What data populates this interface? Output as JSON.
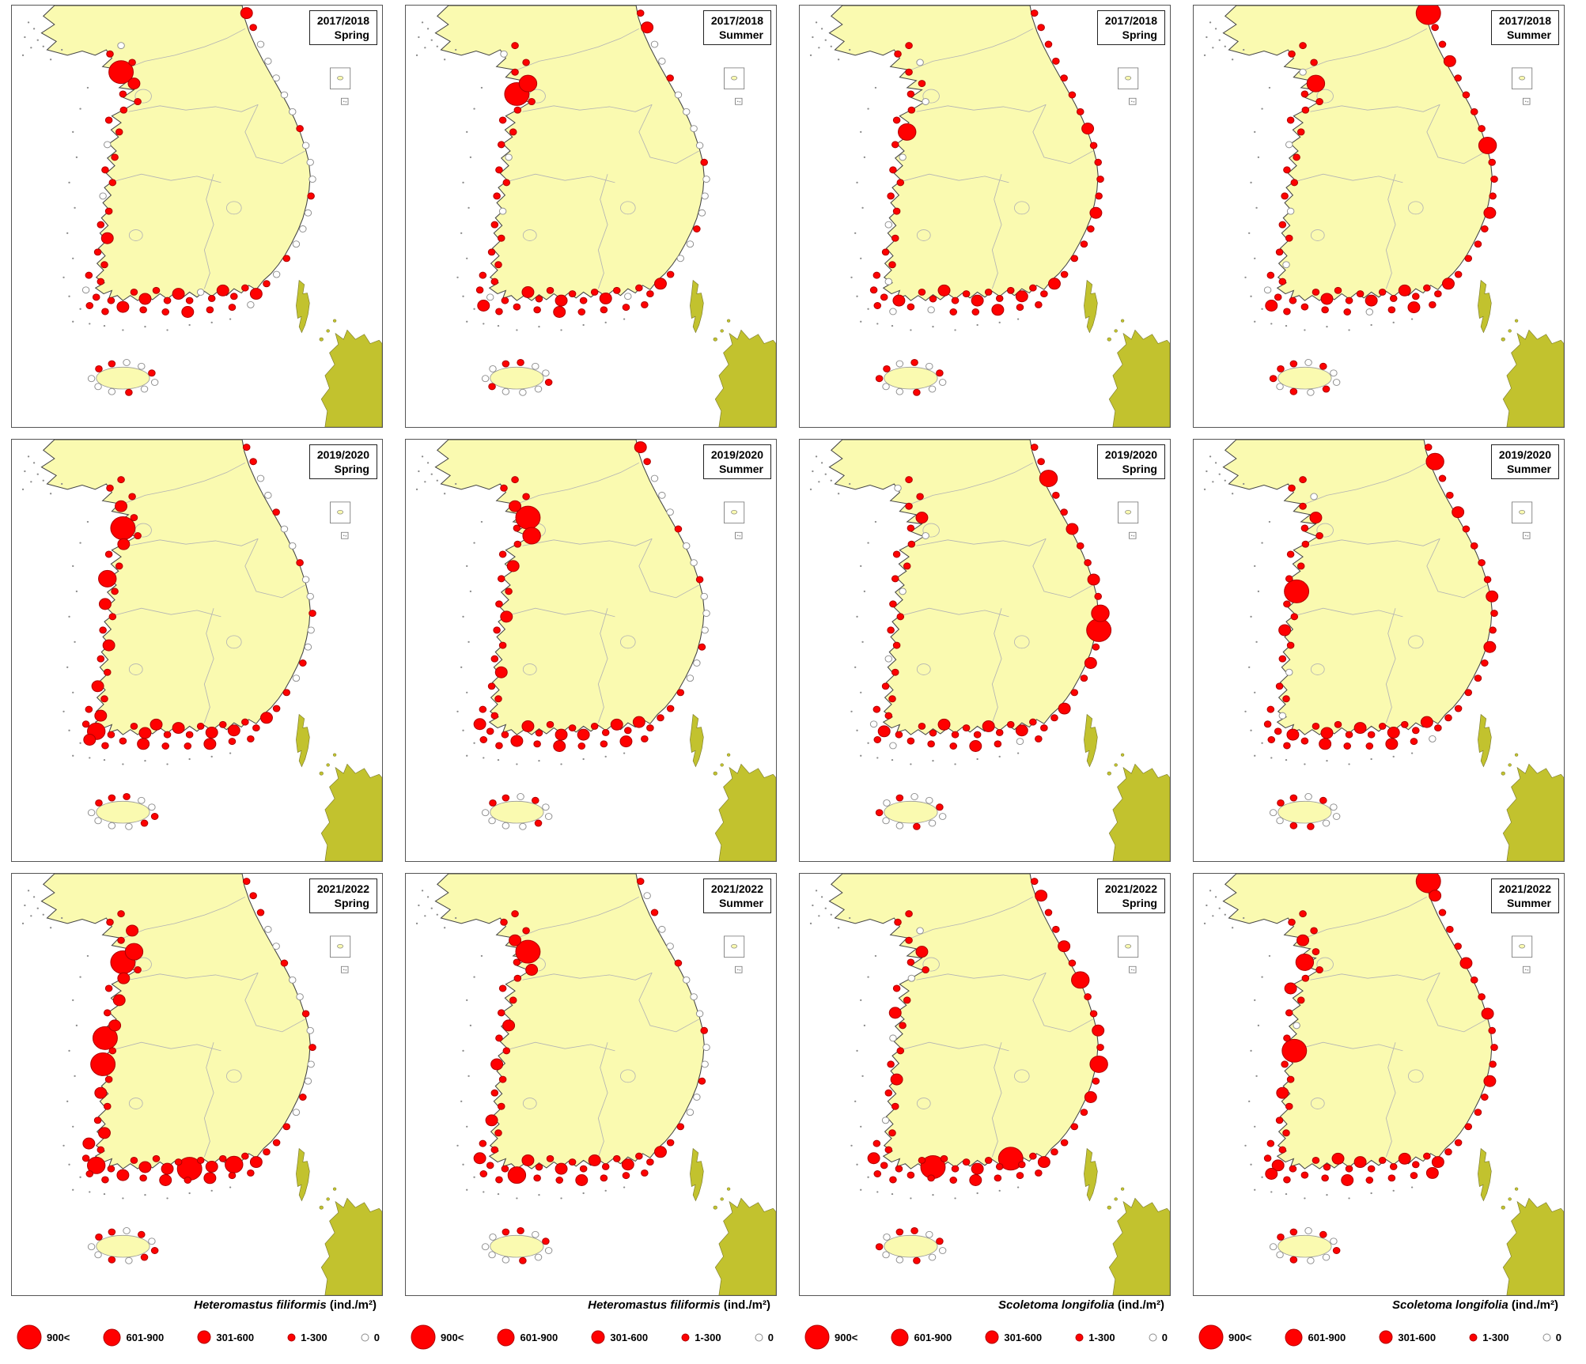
{
  "figure": {
    "columns": [
      {
        "species": "Heteromastus filiformis",
        "unit": "(ind./m²)"
      },
      {
        "species": "Heteromastus filiformis",
        "unit": "(ind./m²)"
      },
      {
        "species": "Scoletoma longifolia",
        "unit": "(ind./m²)"
      },
      {
        "species": "Scoletoma longifolia",
        "unit": "(ind./m²)"
      }
    ],
    "panels": [
      {
        "year": "2017/2018",
        "season": "Spring",
        "categories": "011421111101110112111101121112112101211210112110100010001000001201100100100"
      },
      {
        "year": "2017/2018",
        "season": "Summer",
        "categories": "101134111110111011111110112121121112101121121111001000100001002100110010001"
      },
      {
        "year": "2017/2018",
        "season": "Spring",
        "categories": "110111011310111101111011211011211211121121011211111211112111111111010100100"
      },
      {
        "year": "2017/2018",
        "season": "Summer",
        "categories": "111031111101111011101101112112111211211121110121111211131111211411101001010"
      },
      {
        "year": "2019/2020",
        "season": "Spring",
        "categories": "111214121131211211211213112112212112121121211211101001001001001101110011000"
      },
      {
        "year": "2019/2020",
        "season": "Summer",
        "categories": "111241311211121112111121121121121211212111121121100100010010001201101001000"
      },
      {
        "year": "2019/2020",
        "season": "Spring",
        "categories": "101121011110111101111102111011211121121112112101112143121121131110100100100"
      },
      {
        "year": "2019/2020",
        "season": "Summer",
        "categories": "110121111114112110111011211112112112112111211210111211211112113101101000110"
      },
      {
        "year": "2021/2022",
        "season": "Spring",
        "categories": "112134121212414121122113121112121412131211121211101001010010011101101011010"
      },
      {
        "year": "2021/2022",
        "season": "Summer",
        "categories": "111241211112112111211121131121121121121121112111100100100010010100110100100"
      },
      {
        "year": "2021/2022",
        "season": "Spring",
        "categories": "110121101121011211011121111114111211411211112111112131211312112110110100100"
      },
      {
        "year": "2021/2022",
        "season": "Summer",
        "categories": "111213112110141121111112112111212111211211121112111211121121112401101010010"
      }
    ],
    "legend": {
      "items": [
        {
          "label": "900<",
          "size": 4
        },
        {
          "label": "601-900",
          "size": 3
        },
        {
          "label": "301-600",
          "size": 2
        },
        {
          "label": "1-300",
          "size": 1
        },
        {
          "label": "0",
          "size": 0
        }
      ]
    },
    "map": {
      "colors": {
        "land": "#FAFAB0",
        "japan": "#C2C22E",
        "bubble": "#FF0000",
        "bubble_stroke": "#B00000",
        "zero_fill": "#FFFFFF",
        "zero_stroke": "#8C8C8C",
        "coast": "#444444",
        "province": "#B3B3B3"
      }
    },
    "stations": [
      [
        0.295,
        0.095
      ],
      [
        0.265,
        0.115
      ],
      [
        0.325,
        0.135
      ],
      [
        0.295,
        0.158
      ],
      [
        0.33,
        0.185
      ],
      [
        0.3,
        0.21
      ],
      [
        0.34,
        0.228
      ],
      [
        0.302,
        0.248
      ],
      [
        0.262,
        0.272
      ],
      [
        0.29,
        0.3
      ],
      [
        0.258,
        0.33
      ],
      [
        0.278,
        0.36
      ],
      [
        0.252,
        0.39
      ],
      [
        0.272,
        0.42
      ],
      [
        0.246,
        0.452
      ],
      [
        0.262,
        0.488
      ],
      [
        0.24,
        0.52
      ],
      [
        0.258,
        0.552
      ],
      [
        0.232,
        0.585
      ],
      [
        0.25,
        0.615
      ],
      [
        0.208,
        0.64
      ],
      [
        0.24,
        0.655
      ],
      [
        0.2,
        0.675
      ],
      [
        0.228,
        0.692
      ],
      [
        0.268,
        0.7
      ],
      [
        0.3,
        0.715
      ],
      [
        0.21,
        0.712
      ],
      [
        0.252,
        0.726
      ],
      [
        0.33,
        0.68
      ],
      [
        0.36,
        0.696
      ],
      [
        0.39,
        0.676
      ],
      [
        0.42,
        0.7
      ],
      [
        0.45,
        0.684
      ],
      [
        0.48,
        0.7
      ],
      [
        0.51,
        0.68
      ],
      [
        0.54,
        0.695
      ],
      [
        0.57,
        0.676
      ],
      [
        0.6,
        0.69
      ],
      [
        0.63,
        0.67
      ],
      [
        0.66,
        0.684
      ],
      [
        0.688,
        0.66
      ],
      [
        0.715,
        0.638
      ],
      [
        0.355,
        0.722
      ],
      [
        0.415,
        0.727
      ],
      [
        0.475,
        0.727
      ],
      [
        0.535,
        0.722
      ],
      [
        0.595,
        0.716
      ],
      [
        0.645,
        0.71
      ],
      [
        0.742,
        0.6
      ],
      [
        0.768,
        0.566
      ],
      [
        0.786,
        0.53
      ],
      [
        0.8,
        0.492
      ],
      [
        0.808,
        0.452
      ],
      [
        0.812,
        0.412
      ],
      [
        0.806,
        0.372
      ],
      [
        0.794,
        0.332
      ],
      [
        0.778,
        0.292
      ],
      [
        0.758,
        0.252
      ],
      [
        0.736,
        0.212
      ],
      [
        0.714,
        0.172
      ],
      [
        0.692,
        0.132
      ],
      [
        0.672,
        0.092
      ],
      [
        0.652,
        0.052
      ],
      [
        0.634,
        0.018
      ],
      [
        0.215,
        0.885
      ],
      [
        0.235,
        0.862
      ],
      [
        0.27,
        0.85
      ],
      [
        0.31,
        0.847
      ],
      [
        0.35,
        0.856
      ],
      [
        0.378,
        0.872
      ],
      [
        0.386,
        0.894
      ],
      [
        0.358,
        0.91
      ],
      [
        0.316,
        0.918
      ],
      [
        0.27,
        0.916
      ],
      [
        0.233,
        0.904
      ]
    ]
  }
}
